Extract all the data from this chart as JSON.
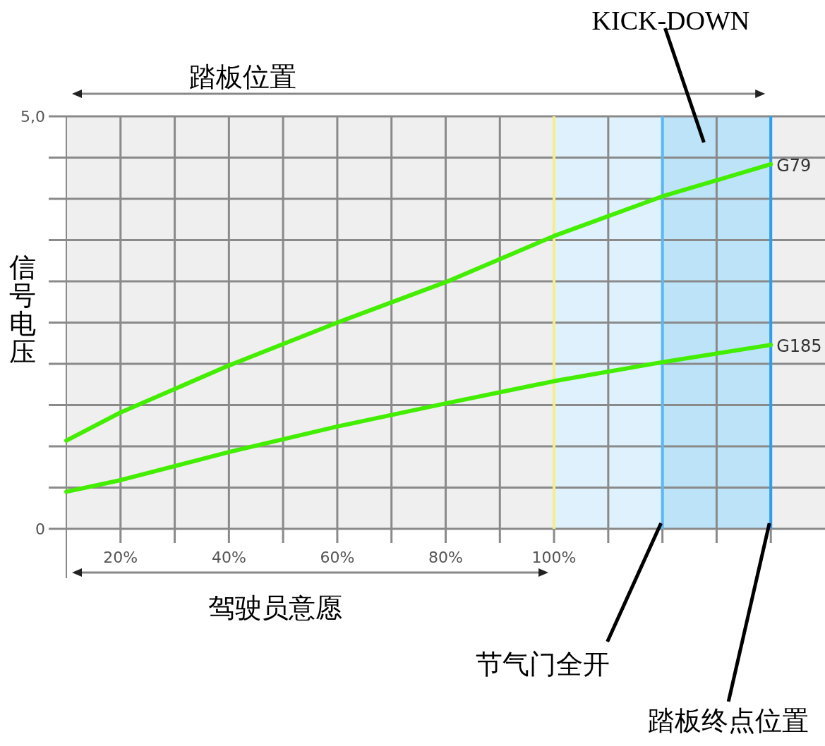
{
  "chart_data": {
    "type": "line",
    "xlabel": "驾驶员意愿",
    "x2label": "踏板位置",
    "ylabel": "信号电压",
    "x": [
      10,
      20,
      40,
      60,
      80,
      100,
      120,
      140
    ],
    "series": [
      {
        "name": "G79",
        "color": "#44ee00",
        "values": [
          1.07,
          1.41,
          1.98,
          2.5,
          2.99,
          3.55,
          4.03,
          4.42
        ]
      },
      {
        "name": "G185",
        "color": "#44ee00",
        "values": [
          0.45,
          0.59,
          0.93,
          1.24,
          1.52,
          1.79,
          2.02,
          2.23
        ]
      }
    ],
    "xlim": [
      10,
      150
    ],
    "xticks": [
      {
        "value": 20,
        "label": "20%"
      },
      {
        "value": 30,
        "label": null
      },
      {
        "value": 40,
        "label": "40%"
      },
      {
        "value": 50,
        "label": null
      },
      {
        "value": 60,
        "label": "60%"
      },
      {
        "value": 70,
        "label": null
      },
      {
        "value": 80,
        "label": "80%"
      },
      {
        "value": 90,
        "label": null
      },
      {
        "value": 100,
        "label": "100%"
      },
      {
        "value": 110,
        "label": null
      },
      {
        "value": 120,
        "label": null
      },
      {
        "value": 130,
        "label": null
      },
      {
        "value": 140,
        "label": null
      }
    ],
    "ylim": [
      0,
      5
    ],
    "yticks": [
      0,
      {
        "value": 0.5,
        "label": null
      },
      {
        "value": 1,
        "label": null
      },
      {
        "value": 1.5,
        "label": null
      },
      {
        "value": 2,
        "label": null
      },
      {
        "value": 2.5,
        "label": null
      },
      {
        "value": 3,
        "label": null
      },
      {
        "value": 3.5,
        "label": null
      },
      {
        "value": 4,
        "label": null
      },
      {
        "value": 4.5,
        "label": null
      },
      {
        "value": 5,
        "label": "5,0"
      }
    ],
    "grid": true,
    "line_style": "solid",
    "bands": [
      {
        "axis": "x",
        "from": 100,
        "to": 120,
        "color": "#dff1fc"
      },
      {
        "axis": "x",
        "from": 120,
        "to": 140,
        "color": "#bde3f9",
        "label": "KICK-DOWN"
      }
    ],
    "ref_lines": [
      {
        "axis": "x",
        "value": 100,
        "color": "#f5ee8a"
      },
      {
        "axis": "x",
        "value": 120,
        "color": "#5ab8f2",
        "label": "节气门全开"
      },
      {
        "axis": "x",
        "value": 140,
        "color": "#2a9ff0",
        "label": "踏板终点位置"
      }
    ]
  }
}
